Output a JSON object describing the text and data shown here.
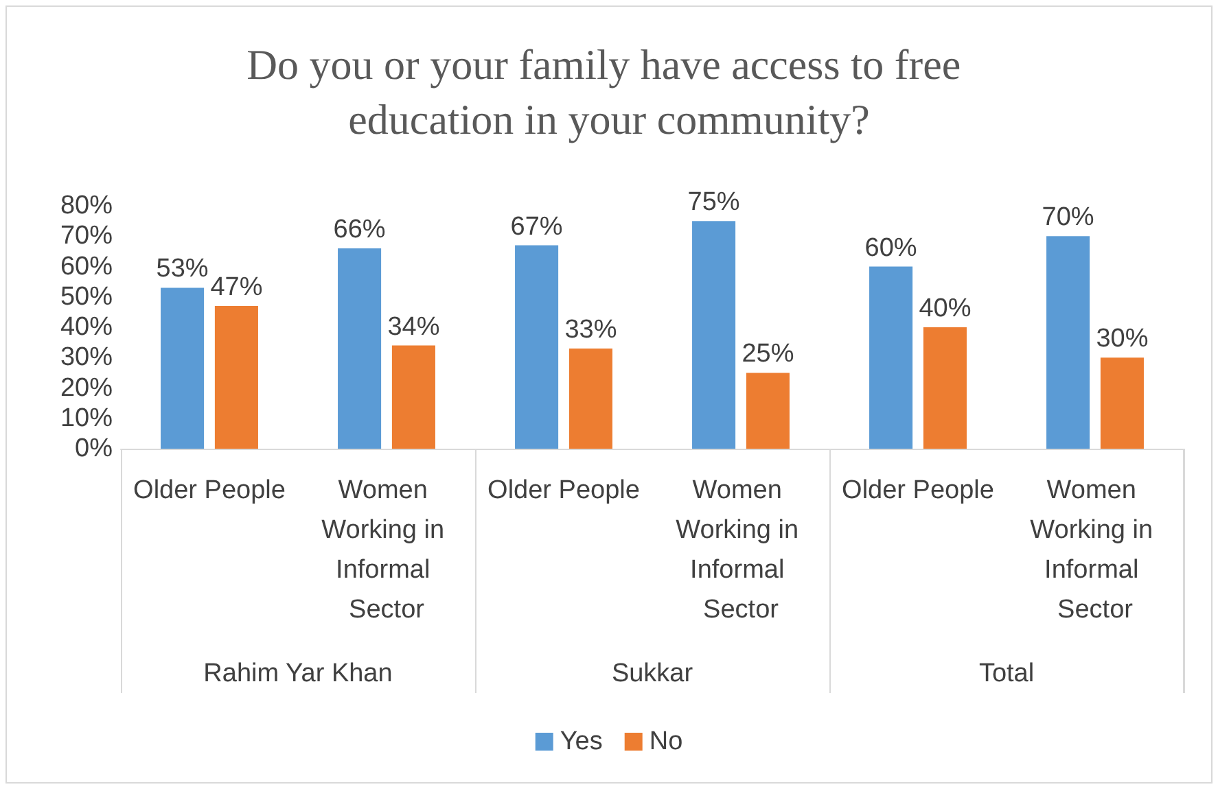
{
  "chart_data": {
    "type": "bar",
    "title": "Do you or your family have access to free education in your community?",
    "categories": [
      "Older People",
      "Women Working in Informal Sector",
      "Older People",
      "Women Working in Informal Sector",
      "Older People",
      "Women Working in Informal Sector"
    ],
    "annotations": [
      "Rahim Yar Khan",
      "Sukkar",
      "Total"
    ],
    "series": [
      {
        "name": "Yes",
        "color": "#5b9bd5",
        "values": [
          53,
          66,
          67,
          75,
          60,
          70
        ],
        "value_labels": [
          "53%",
          "66%",
          "67%",
          "75%",
          "60%",
          "70%"
        ]
      },
      {
        "name": "No",
        "color": "#ed7d31",
        "values": [
          47,
          34,
          33,
          25,
          40,
          30
        ],
        "value_labels": [
          "47%",
          "34%",
          "33%",
          "25%",
          "40%",
          "30%"
        ]
      }
    ],
    "ylim": [
      0,
      80
    ],
    "yticks": [
      {
        "value": 0,
        "label": "0%"
      },
      {
        "value": 10,
        "label": "10%"
      },
      {
        "value": 20,
        "label": "20%"
      },
      {
        "value": 30,
        "label": "30%"
      },
      {
        "value": 40,
        "label": "40%"
      },
      {
        "value": 50,
        "label": "50%"
      },
      {
        "value": 60,
        "label": "60%"
      },
      {
        "value": 70,
        "label": "70%"
      },
      {
        "value": 80,
        "label": "80%"
      }
    ],
    "legend": "bottom"
  }
}
